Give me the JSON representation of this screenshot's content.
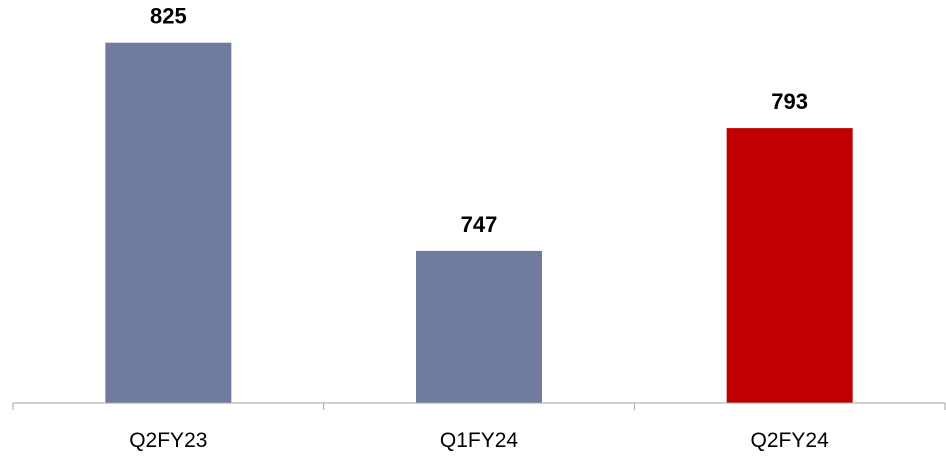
{
  "chart_data": {
    "type": "bar",
    "categories": [
      "Q2FY23",
      "Q1FY24",
      "Q2FY24"
    ],
    "values": [
      825,
      747,
      793
    ],
    "title": "",
    "xlabel": "",
    "ylabel": "",
    "ylim": [
      690,
      838
    ],
    "grid": false,
    "legend": "none",
    "colors": [
      "#717ba0",
      "#717ba0",
      "#c00000"
    ]
  }
}
